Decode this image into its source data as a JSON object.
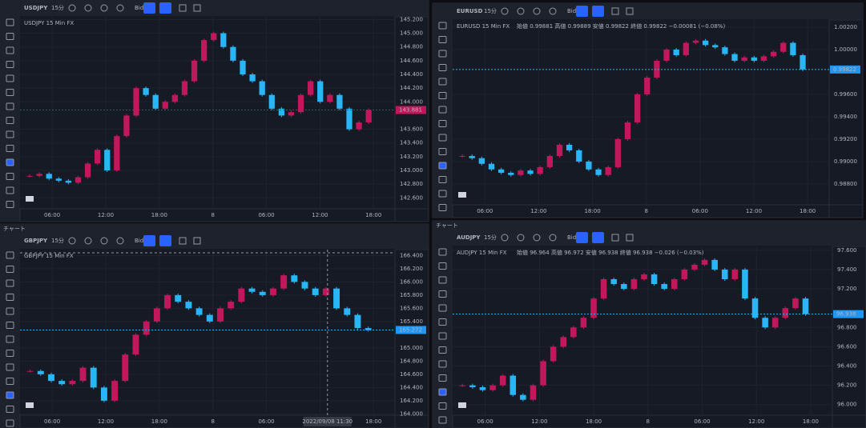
{
  "panels": [
    {
      "symbol": "USDJPY",
      "interval": "15分",
      "side": "Bid",
      "legend": "USDJPY  15  Min  FX",
      "ylim": [
        142.44,
        145.24
      ],
      "yticks": [
        {
          "value": 142.6,
          "label": "142.600"
        },
        {
          "value": 142.8,
          "label": "142.800"
        },
        {
          "value": 143,
          "label": "143.000"
        },
        {
          "value": 143.2,
          "label": "143.200"
        },
        {
          "value": 143.4,
          "label": "143.400"
        },
        {
          "value": 143.6,
          "label": "143.600"
        },
        {
          "value": 144,
          "label": "144.000"
        },
        {
          "value": 144.2,
          "label": "144.200"
        },
        {
          "value": 144.4,
          "label": "144.400"
        },
        {
          "value": 144.6,
          "label": "144.600"
        },
        {
          "value": 144.8,
          "label": "144.800"
        },
        {
          "value": 145,
          "label": "145.000"
        },
        {
          "value": 145.2,
          "label": "145.200"
        }
      ],
      "price": {
        "value": 143.881,
        "label": "143.881"
      },
      "xlabels": [
        "06:00",
        "12:00",
        "18:00",
        "8",
        "06:00",
        "12:00",
        "18:00"
      ],
      "closes": [
        142.92,
        142.95,
        142.88,
        142.85,
        142.82,
        142.9,
        143.1,
        143.3,
        143.0,
        143.5,
        143.8,
        144.2,
        144.1,
        143.9,
        144.0,
        144.1,
        144.3,
        144.6,
        144.9,
        145.0,
        144.8,
        144.6,
        144.4,
        144.3,
        144.1,
        143.9,
        143.8,
        143.85,
        144.1,
        144.3,
        144.0,
        144.1,
        143.9,
        143.6,
        143.7,
        143.881
      ]
    },
    {
      "symbol": "EURUSD",
      "interval": "15分",
      "side": "Bid",
      "legend": "EURUSD  15  Min  FX",
      "ohlc": "始値 0.99881  高値 0.99889  安値 0.99822  終値 0.99822  −0.00081 (−0.08%)",
      "ylim": [
        0.98614,
        1.00264
      ],
      "yticks": [
        {
          "value": 0.988,
          "label": "0.98800"
        },
        {
          "value": 0.99,
          "label": "0.99000"
        },
        {
          "value": 0.992,
          "label": "0.99200"
        },
        {
          "value": 0.994,
          "label": "0.99400"
        },
        {
          "value": 0.996,
          "label": "0.99600"
        },
        {
          "value": 1,
          "label": "1.00000"
        },
        {
          "value": 1.002,
          "label": "1.00200"
        }
      ],
      "price": {
        "value": 0.99822,
        "label": "0.99822"
      },
      "xlabels": [
        "06:00",
        "12:00",
        "18:00",
        "8",
        "06:00",
        "12:00",
        "18:00"
      ],
      "closes": [
        0.9905,
        0.9903,
        0.9898,
        0.9893,
        0.989,
        0.9888,
        0.9892,
        0.9889,
        0.9895,
        0.9905,
        0.9915,
        0.991,
        0.99,
        0.9893,
        0.9888,
        0.9895,
        0.992,
        0.9935,
        0.996,
        0.9975,
        0.999,
        1.0,
        0.9995,
        1.0006,
        1.0008,
        1.0004,
        1.0002,
        0.9996,
        0.999,
        0.9993,
        0.999,
        0.9994,
        0.9998,
        1.0006,
        0.9995,
        0.99822
      ]
    },
    {
      "header": "チャート",
      "symbol": "GBPJPY",
      "interval": "15分",
      "side": "Bid",
      "legend": "GBPJPY  15  Min  FX",
      "ylim": [
        163.98,
        166.49
      ],
      "yticks": [
        {
          "value": 164,
          "label": "164.000"
        },
        {
          "value": 164.2,
          "label": "164.200"
        },
        {
          "value": 164.4,
          "label": "164.400"
        },
        {
          "value": 164.6,
          "label": "164.600"
        },
        {
          "value": 164.8,
          "label": "164.800"
        },
        {
          "value": 165,
          "label": "165.000"
        },
        {
          "value": 165.4,
          "label": "165.400"
        },
        {
          "value": 165.6,
          "label": "165.600"
        },
        {
          "value": 165.8,
          "label": "165.800"
        },
        {
          "value": 166,
          "label": "166.000"
        },
        {
          "value": 166.2,
          "label": "166.200"
        },
        {
          "value": 166.4,
          "label": "166.400"
        }
      ],
      "price": {
        "value": 165.272,
        "label": "165.272"
      },
      "crosshair_time": "2022/09/08  11:30",
      "xlabels": [
        "06:00",
        "12:00",
        "18:00",
        "8",
        "06:00",
        "12:00",
        "18:00"
      ],
      "closes": [
        164.65,
        164.6,
        164.5,
        164.45,
        164.5,
        164.7,
        164.4,
        164.2,
        164.5,
        164.9,
        165.2,
        165.4,
        165.6,
        165.8,
        165.7,
        165.6,
        165.5,
        165.4,
        165.6,
        165.7,
        165.9,
        165.85,
        165.8,
        165.9,
        166.1,
        166.0,
        165.9,
        165.8,
        165.9,
        165.6,
        165.5,
        165.3,
        165.272
      ]
    },
    {
      "header": "チャート",
      "symbol": "AUDJPY",
      "interval": "15分",
      "side": "Bid",
      "legend": "AUDJPY  15  Min  FX",
      "ohlc": "始値 96.964  高値 96.972  安値 96.938  終値 96.938  −0.026 (−0.03%)",
      "ylim": [
        95.89,
        97.64
      ],
      "yticks": [
        {
          "value": 96,
          "label": "96.000"
        },
        {
          "value": 96.2,
          "label": "96.200"
        },
        {
          "value": 96.4,
          "label": "96.400"
        },
        {
          "value": 96.6,
          "label": "96.600"
        },
        {
          "value": 96.8,
          "label": "96.800"
        },
        {
          "value": 97.2,
          "label": "97.200"
        },
        {
          "value": 97.4,
          "label": "97.400"
        },
        {
          "value": 97.6,
          "label": "97.600"
        }
      ],
      "price": {
        "value": 96.938,
        "label": "96.938"
      },
      "xlabels": [
        "06:00",
        "12:00",
        "18:00",
        "8",
        "06:00",
        "12:00",
        "18:00"
      ],
      "closes": [
        96.2,
        96.18,
        96.15,
        96.2,
        96.3,
        96.1,
        96.05,
        96.2,
        96.45,
        96.6,
        96.7,
        96.8,
        96.9,
        97.1,
        97.3,
        97.25,
        97.2,
        97.3,
        97.35,
        97.25,
        97.2,
        97.3,
        97.4,
        97.45,
        97.5,
        97.4,
        97.3,
        97.4,
        97.1,
        96.9,
        96.8,
        96.9,
        97.0,
        97.1,
        96.938
      ]
    }
  ]
}
